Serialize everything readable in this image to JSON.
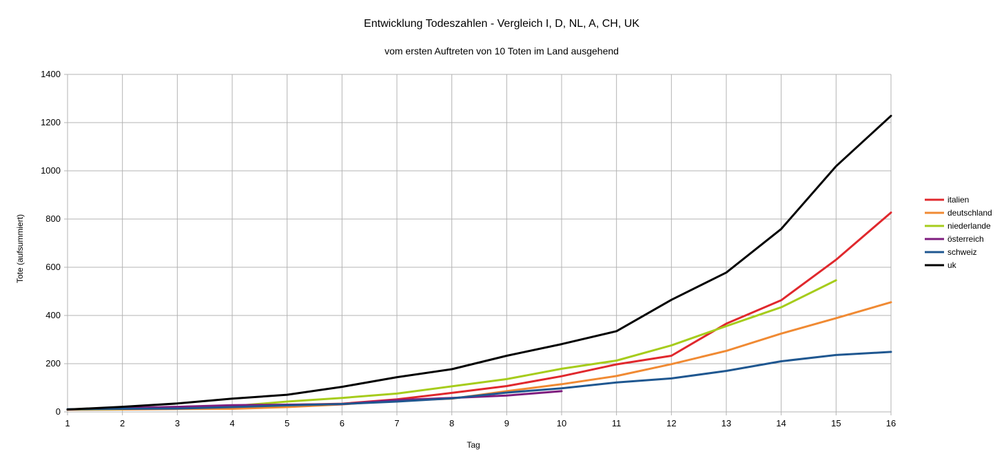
{
  "chart_data": {
    "type": "line",
    "title": "Entwicklung Todeszahlen - Vergleich I, D, NL, A, CH, UK",
    "subtitle": "vom ersten Auftreten von 10 Toten im Land ausgehend",
    "xlabel": "Tag",
    "ylabel": "Tote (aufsummiert)",
    "xlim": [
      1,
      16
    ],
    "ylim": [
      0,
      1400
    ],
    "x_ticks": [
      1,
      2,
      3,
      4,
      5,
      6,
      7,
      8,
      9,
      10,
      11,
      12,
      13,
      14,
      15,
      16
    ],
    "y_ticks": [
      0,
      200,
      400,
      600,
      800,
      1000,
      1200,
      1400
    ],
    "grid": true,
    "legend_position": "right",
    "series": [
      {
        "name": "italien",
        "color": "#e0282d",
        "x": [
          1,
          2,
          3,
          4,
          5,
          6,
          7,
          8,
          9,
          10,
          11,
          12,
          13,
          14,
          15,
          16
        ],
        "values": [
          10,
          12,
          17,
          21,
          29,
          34,
          52,
          79,
          107,
          148,
          197,
          233,
          366,
          463,
          631,
          827
        ]
      },
      {
        "name": "deutschland",
        "color": "#f08a33",
        "x": [
          1,
          2,
          3,
          4,
          5,
          6,
          7,
          8,
          9,
          10,
          11,
          12,
          13,
          14,
          15,
          16
        ],
        "values": [
          9,
          10,
          12,
          13,
          20,
          31,
          47,
          55,
          86,
          115,
          149,
          198,
          253,
          325,
          389,
          455
        ]
      },
      {
        "name": "niederlande",
        "color": "#a6cc1c",
        "x": [
          1,
          2,
          3,
          4,
          5,
          6,
          7,
          8,
          9,
          10,
          11,
          12,
          13,
          14,
          15
        ],
        "values": [
          10,
          12,
          20,
          24,
          43,
          58,
          76,
          106,
          136,
          179,
          213,
          276,
          356,
          434,
          546
        ]
      },
      {
        "name": "österreich",
        "color": "#7e1c7e",
        "x": [
          1,
          2,
          3,
          4,
          5,
          6,
          7,
          8,
          9,
          10
        ],
        "values": [
          10,
          16,
          21,
          28,
          30,
          32,
          49,
          58,
          68,
          86
        ]
      },
      {
        "name": "schweiz",
        "color": "#1f5790",
        "x": [
          1,
          2,
          3,
          4,
          5,
          6,
          7,
          8,
          9,
          10,
          11,
          12,
          13,
          14,
          15,
          16
        ],
        "values": [
          11,
          13,
          14,
          20,
          27,
          33,
          43,
          56,
          80,
          98,
          122,
          139,
          170,
          210,
          236,
          249
        ]
      },
      {
        "name": "uk",
        "color": "#000000",
        "x": [
          1,
          2,
          3,
          4,
          5,
          6,
          7,
          8,
          9,
          10,
          11,
          12,
          13,
          14,
          15,
          16
        ],
        "values": [
          10,
          21,
          35,
          55,
          71,
          104,
          144,
          177,
          233,
          281,
          335,
          465,
          578,
          759,
          1019,
          1228
        ]
      }
    ]
  }
}
